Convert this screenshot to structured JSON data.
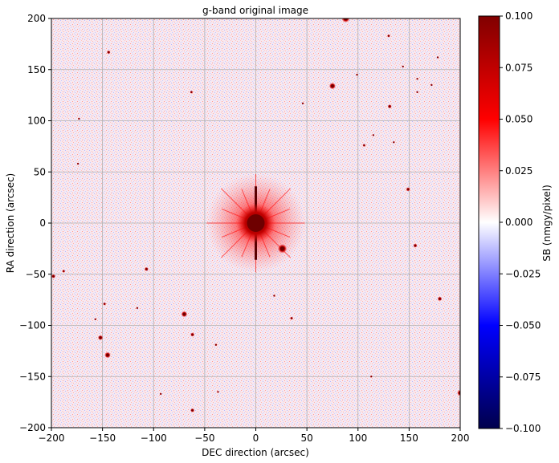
{
  "figure": {
    "title": "g-band original image",
    "xlabel": "DEC direction (arcsec)",
    "ylabel": "RA direction (arcsec)",
    "colorbar_label": "SB (nmgy/pixel)"
  },
  "axes": {
    "xlim": [
      -200,
      200
    ],
    "ylim": [
      -200,
      200
    ],
    "xticks": [
      "−200",
      "−150",
      "−100",
      "−50",
      "0",
      "50",
      "100",
      "150",
      "200"
    ],
    "yticks": [
      "−200",
      "−150",
      "−100",
      "−50",
      "0",
      "50",
      "100",
      "150",
      "200"
    ],
    "grid": true
  },
  "colorbar": {
    "range": [
      -0.1,
      0.1
    ],
    "ticks": [
      "−0.100",
      "−0.075",
      "−0.050",
      "−0.025",
      "0.000",
      "0.025",
      "0.050",
      "0.075",
      "0.100"
    ],
    "colormap": "seismic",
    "colors": {
      "low": "#00004c",
      "mid_low": "#0000ff",
      "zero": "#ffffff",
      "mid_high": "#ff0000",
      "high": "#800000"
    }
  },
  "image": {
    "background_color": "#f6e6ee",
    "central_source": {
      "x": 0,
      "y": 0,
      "radius": 22,
      "spike_length": 48
    },
    "sources": [
      {
        "x": 0,
        "y": 0,
        "r": 12
      },
      {
        "x": 26,
        "y": -25,
        "r": 4.5
      },
      {
        "x": -145,
        "y": -129,
        "r": 3
      },
      {
        "x": -152,
        "y": -112,
        "r": 2.5
      },
      {
        "x": -70,
        "y": -89,
        "r": 3
      },
      {
        "x": -62,
        "y": -109,
        "r": 2
      },
      {
        "x": -107,
        "y": -45,
        "r": 2
      },
      {
        "x": -198,
        "y": -52,
        "r": 2
      },
      {
        "x": -188,
        "y": -47,
        "r": 1.5
      },
      {
        "x": -148,
        "y": -79,
        "r": 1.5
      },
      {
        "x": -62,
        "y": -183,
        "r": 2
      },
      {
        "x": -144,
        "y": 167,
        "r": 1.8
      },
      {
        "x": 149,
        "y": 33,
        "r": 2
      },
      {
        "x": 156,
        "y": -22,
        "r": 2
      },
      {
        "x": 180,
        "y": -74,
        "r": 2.2
      },
      {
        "x": 200,
        "y": -166,
        "r": 3
      },
      {
        "x": 75,
        "y": 134,
        "r": 3.2
      },
      {
        "x": 131,
        "y": 114,
        "r": 2
      },
      {
        "x": 130,
        "y": 183,
        "r": 1.5
      },
      {
        "x": 88,
        "y": 200,
        "r": 4
      },
      {
        "x": 106,
        "y": 76,
        "r": 1.5
      },
      {
        "x": -63,
        "y": 128,
        "r": 1.5
      },
      {
        "x": -174,
        "y": 58,
        "r": 1.2
      },
      {
        "x": -173,
        "y": 102,
        "r": 1.2
      },
      {
        "x": -39,
        "y": -119,
        "r": 1.3
      },
      {
        "x": 35,
        "y": -93,
        "r": 1.6
      },
      {
        "x": 18,
        "y": -71,
        "r": 1.2
      },
      {
        "x": 158,
        "y": 128,
        "r": 1.2
      },
      {
        "x": 113,
        "y": -150,
        "r": 1.2
      },
      {
        "x": -37,
        "y": -165,
        "r": 1.1
      },
      {
        "x": -157,
        "y": -94,
        "r": 1.1
      },
      {
        "x": -116,
        "y": -83,
        "r": 1.1
      },
      {
        "x": -93,
        "y": -167,
        "r": 1.1
      },
      {
        "x": 46,
        "y": 117,
        "r": 1.1
      },
      {
        "x": 144,
        "y": 153,
        "r": 1.1
      },
      {
        "x": 172,
        "y": 135,
        "r": 1.2
      },
      {
        "x": 178,
        "y": 162,
        "r": 1.1
      },
      {
        "x": 158,
        "y": 141,
        "r": 1.1
      },
      {
        "x": 115,
        "y": 86,
        "r": 1.1
      },
      {
        "x": 99,
        "y": 145,
        "r": 1.1
      },
      {
        "x": 135,
        "y": 79,
        "r": 1.1
      }
    ]
  }
}
